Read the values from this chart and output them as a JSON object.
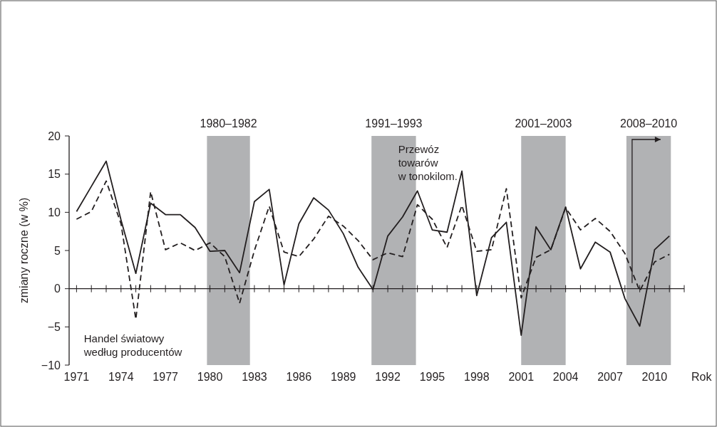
{
  "chart_data": {
    "type": "line",
    "xlabel": "Rok",
    "ylabel": "zmiany roczne (w %)",
    "x": [
      1971,
      1972,
      1973,
      1974,
      1975,
      1976,
      1977,
      1978,
      1979,
      1980,
      1981,
      1982,
      1983,
      1984,
      1985,
      1986,
      1987,
      1988,
      1989,
      1990,
      1991,
      1992,
      1993,
      1994,
      1995,
      1996,
      1997,
      1998,
      1999,
      2000,
      2001,
      2002,
      2003,
      2004,
      2005,
      2006,
      2007,
      2008,
      2009,
      2010,
      2011
    ],
    "series": [
      {
        "name": "Przewóz towarów w tonokilom.",
        "color": "#231f20",
        "line_style": "solid",
        "values": [
          10.1,
          13.4,
          16.7,
          9,
          2,
          11.2,
          9.7,
          9.7,
          8,
          4.9,
          5,
          2.1,
          11.4,
          13,
          0.5,
          8.5,
          11.9,
          10.3,
          7.2,
          2.8,
          -0.1,
          6.9,
          9.4,
          12.8,
          7.7,
          7.4,
          15.4,
          -0.9,
          6.7,
          8.7,
          -6.1,
          8.1,
          5.1,
          10.7,
          2.6,
          6.1,
          4.8,
          -1.3,
          -4.9,
          5.1,
          6.9
        ]
      },
      {
        "name": "Handel światowy według producentów",
        "color": "#231f20",
        "line_style": "dashed",
        "values": [
          9.1,
          10.1,
          14.1,
          8.5,
          -4,
          12.7,
          5.1,
          6,
          5,
          6,
          4.2,
          -1.9,
          5,
          10.8,
          4.8,
          4.2,
          6.5,
          9.5,
          8.2,
          6.3,
          3.8,
          4.7,
          4.2,
          11,
          9.1,
          5.4,
          10.9,
          4.9,
          5.1,
          13.1,
          -1.2,
          4.1,
          5.1,
          10.6,
          7.7,
          9.2,
          7.5,
          4.6,
          -0.3,
          3.5,
          4.5
        ]
      }
    ],
    "xlim": [
      1970.5,
      2012
    ],
    "ylim": [
      -10,
      20
    ],
    "yticks": [
      {
        "value": -10,
        "label": "−10"
      },
      {
        "value": -5,
        "label": "−5"
      },
      0,
      5,
      10,
      15,
      20
    ],
    "xticks": [
      1971,
      {
        "value": 1972,
        "label": null
      },
      {
        "value": 1973,
        "label": null
      },
      1974,
      {
        "value": 1975,
        "label": null
      },
      {
        "value": 1976,
        "label": null
      },
      1977,
      {
        "value": 1978,
        "label": null
      },
      {
        "value": 1979,
        "label": null
      },
      1980,
      {
        "value": 1981,
        "label": null
      },
      {
        "value": 1982,
        "label": null
      },
      1983,
      {
        "value": 1984,
        "label": null
      },
      {
        "value": 1985,
        "label": null
      },
      1986,
      {
        "value": 1987,
        "label": null
      },
      {
        "value": 1988,
        "label": null
      },
      1989,
      {
        "value": 1990,
        "label": null
      },
      {
        "value": 1991,
        "label": null
      },
      1992,
      {
        "value": 1993,
        "label": null
      },
      {
        "value": 1994,
        "label": null
      },
      1995,
      {
        "value": 1996,
        "label": null
      },
      {
        "value": 1997,
        "label": null
      },
      1998,
      {
        "value": 1999,
        "label": null
      },
      {
        "value": 2000,
        "label": null
      },
      2001,
      {
        "value": 2002,
        "label": null
      },
      {
        "value": 2003,
        "label": null
      },
      2004,
      {
        "value": 2005,
        "label": null
      },
      {
        "value": 2006,
        "label": null
      },
      2007,
      {
        "value": 2008,
        "label": null
      },
      {
        "value": 2009,
        "label": null
      },
      2010,
      {
        "value": 2011,
        "label": null
      },
      {
        "value": 2012,
        "label": null
      }
    ],
    "bands": [
      {
        "axis": "x",
        "from": 1979.8,
        "to": 1982.7,
        "label": "1980–1982",
        "color": "#b1b2b4"
      },
      {
        "axis": "x",
        "from": 1990.9,
        "to": 1993.9,
        "label": "1991–1993",
        "color": "#b1b2b4"
      },
      {
        "axis": "x",
        "from": 2001,
        "to": 2004,
        "label": "2001–2003",
        "color": "#b1b2b4"
      },
      {
        "axis": "x",
        "from": 2008.1,
        "to": 2011.1,
        "label": "2008–2010",
        "color": "#b1b2b4"
      }
    ],
    "legend": false,
    "marker": "none"
  }
}
